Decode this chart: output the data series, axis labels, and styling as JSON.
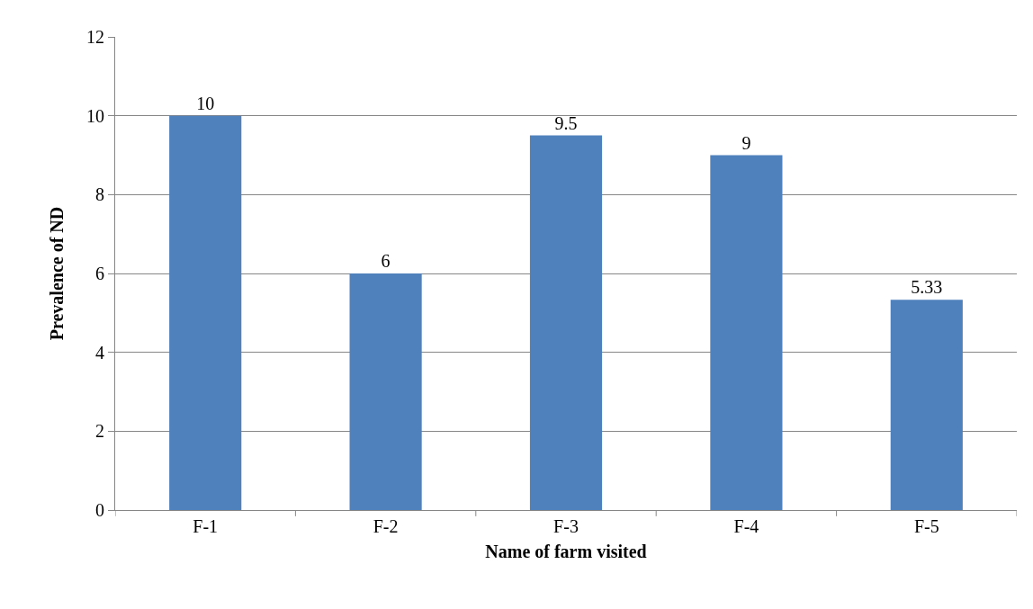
{
  "chart_data": {
    "type": "bar",
    "xlabel": "Name of farm visited",
    "ylabel": "Prevalence of ND",
    "categories": [
      "F-1",
      "F-2",
      "F-3",
      "F-4",
      "F-5"
    ],
    "values": [
      10,
      6,
      9.5,
      9,
      5.33
    ],
    "color": "#4f81bd",
    "ylim": [
      0,
      12
    ],
    "yticks": [
      0,
      2,
      4,
      6,
      8,
      10,
      12
    ],
    "grid": "y",
    "data_labels": true
  }
}
